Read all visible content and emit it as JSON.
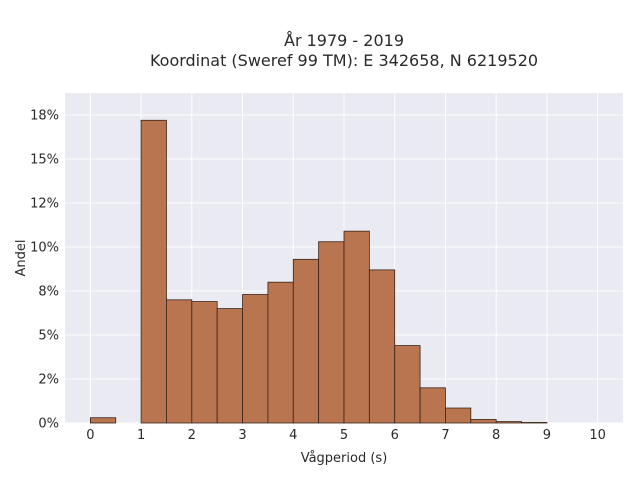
{
  "chart_data": {
    "type": "bar",
    "title_line1": "År 1979 - 2019",
    "title_line2": "Koordinat (Sweref 99 TM): E 342658, N 6219520",
    "xlabel": "Vågperiod (s)",
    "ylabel": "Andel",
    "xlim": [
      -0.5,
      10.5
    ],
    "ylim": [
      0,
      0.1875
    ],
    "x_ticks": [
      0,
      1,
      2,
      3,
      4,
      5,
      6,
      7,
      8,
      9,
      10
    ],
    "x_tick_labels": [
      "0",
      "1",
      "2",
      "3",
      "4",
      "5",
      "6",
      "7",
      "8",
      "9",
      "10"
    ],
    "y_ticks": [
      0,
      0.025,
      0.05,
      0.075,
      0.1,
      0.125,
      0.15,
      0.175
    ],
    "y_tick_labels": [
      "0%",
      "2%",
      "5%",
      "8%",
      "10%",
      "12%",
      "15%",
      "18%"
    ],
    "bin_width": 0.5,
    "bins": [
      {
        "start": 0.0,
        "value": 0.003
      },
      {
        "start": 0.5,
        "value": 0.0
      },
      {
        "start": 1.0,
        "value": 0.172
      },
      {
        "start": 1.5,
        "value": 0.07
      },
      {
        "start": 2.0,
        "value": 0.069
      },
      {
        "start": 2.5,
        "value": 0.065
      },
      {
        "start": 3.0,
        "value": 0.073
      },
      {
        "start": 3.5,
        "value": 0.08
      },
      {
        "start": 4.0,
        "value": 0.093
      },
      {
        "start": 4.5,
        "value": 0.103
      },
      {
        "start": 5.0,
        "value": 0.109
      },
      {
        "start": 5.5,
        "value": 0.087
      },
      {
        "start": 6.0,
        "value": 0.044
      },
      {
        "start": 6.5,
        "value": 0.02
      },
      {
        "start": 7.0,
        "value": 0.0085
      },
      {
        "start": 7.5,
        "value": 0.002
      },
      {
        "start": 8.0,
        "value": 0.0008
      },
      {
        "start": 8.5,
        "value": 0.0003
      },
      {
        "start": 9.0,
        "value": 0.0
      },
      {
        "start": 9.5,
        "value": 0.0
      }
    ],
    "bar_color": "#b87550",
    "bar_edge_color": "#3a2418",
    "plot_bg": "#eaeaf2",
    "grid": true
  }
}
